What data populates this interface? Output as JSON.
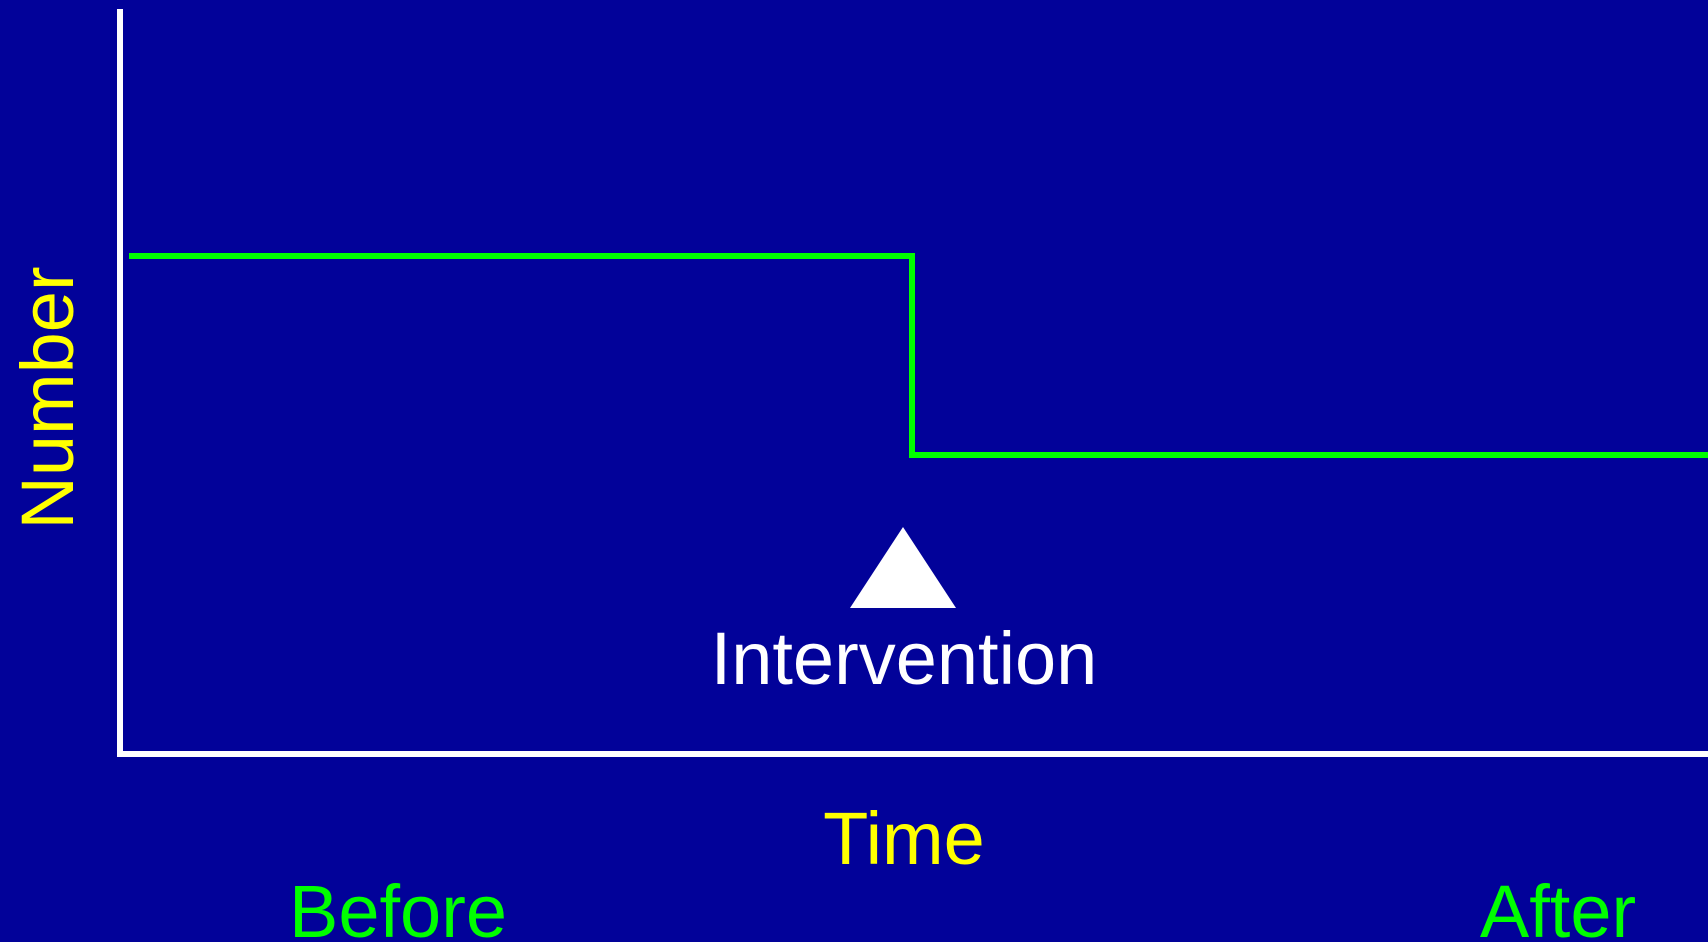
{
  "y_axis_label": "Number",
  "x_axis_label": "Time",
  "left_label": "Before",
  "right_label": "After",
  "annotation": "Intervention"
}
